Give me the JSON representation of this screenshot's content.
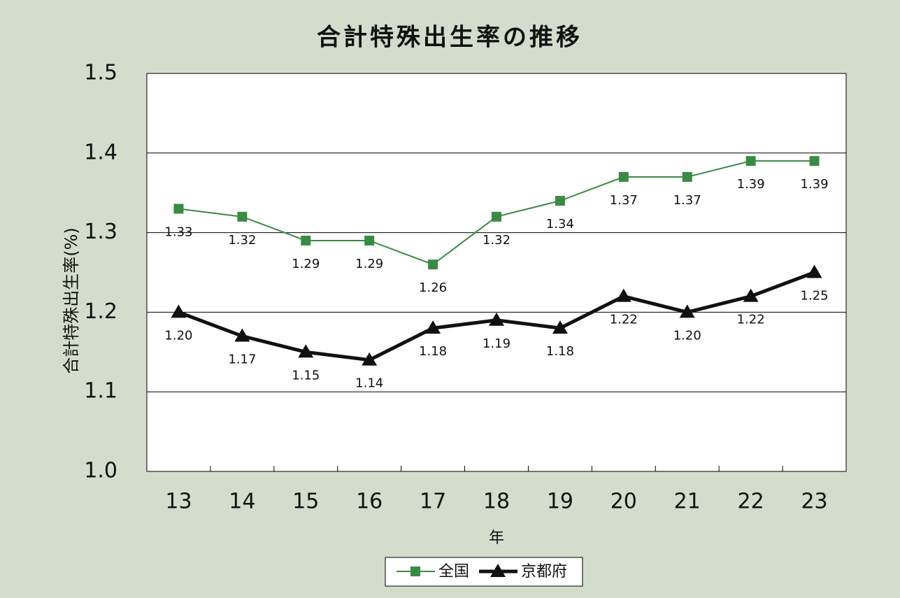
{
  "chart_data": {
    "type": "line",
    "title": "合計特殊出生率の推移",
    "x_label": "年",
    "y_label": "合計特殊出生率(%)",
    "categories": [
      "13",
      "14",
      "15",
      "16",
      "17",
      "18",
      "19",
      "20",
      "21",
      "22",
      "23"
    ],
    "series": [
      {
        "name": "全国",
        "color": "#3a8a45",
        "marker": "square",
        "values": [
          1.33,
          1.32,
          1.29,
          1.29,
          1.26,
          1.32,
          1.34,
          1.37,
          1.37,
          1.39,
          1.39
        ],
        "value_labels": [
          "1.33",
          "1.32",
          "1.29",
          "1.29",
          "1.26",
          "1.32",
          "1.34",
          "1.37",
          "1.37",
          "1.39",
          "1.39"
        ]
      },
      {
        "name": "京都府",
        "color": "#111111",
        "marker": "triangle",
        "values": [
          1.2,
          1.17,
          1.15,
          1.14,
          1.18,
          1.19,
          1.18,
          1.22,
          1.2,
          1.22,
          1.25
        ],
        "value_labels": [
          "1.20",
          "1.17",
          "1.15",
          "1.14",
          "1.18",
          "1.19",
          "1.18",
          "1.22",
          "1.20",
          "1.22",
          "1.25"
        ]
      }
    ],
    "ylim": [
      1,
      1.5
    ],
    "yticks": [
      {
        "value": 1,
        "label": "1.0"
      },
      1.1,
      1.2,
      1.3,
      1.4,
      1.5
    ],
    "grid": true,
    "legend": "bottom"
  }
}
